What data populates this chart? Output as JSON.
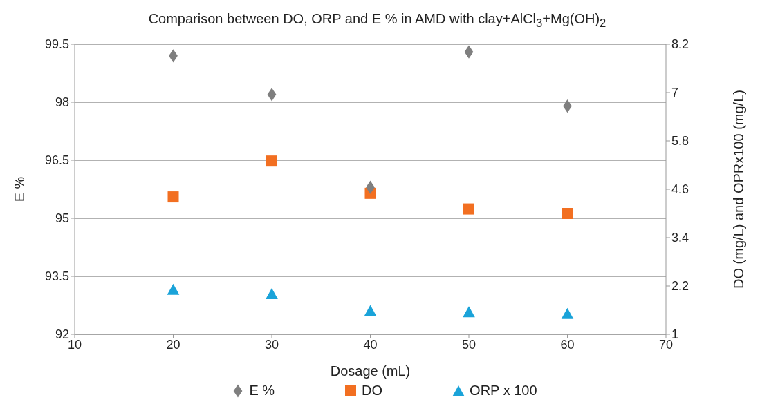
{
  "chart_data": {
    "type": "scatter",
    "title": "Comparison between  DO, ORP and E % in AMD with clay+AlCl$_{3}$+Mg(OH)$_{2}$",
    "xlabel": "Dosage (mL)",
    "ylabel": "E %",
    "y2label": "DO (mg/L) and OPRx100  (mg/L)",
    "x": [
      20,
      30,
      40,
      50,
      60
    ],
    "series": [
      {
        "name": "E %",
        "color": "#7f7f7f",
        "marker": "diamond",
        "values": [
          99.2,
          98.2,
          95.8,
          99.3,
          97.9
        ]
      },
      {
        "name": "DO",
        "color": "#f26f21",
        "marker": "square",
        "axis": "y2",
        "values": [
          4.41,
          5.3,
          4.5,
          4.11,
          4.0
        ]
      },
      {
        "name": "ORP x 100",
        "color": "#1aa3d9",
        "marker": "triangle",
        "axis": "y2",
        "values": [
          2.12,
          2.01,
          1.59,
          1.56,
          1.52
        ]
      }
    ],
    "xlim": [
      10,
      70
    ],
    "xticks": [
      10,
      20,
      30,
      40,
      50,
      60,
      70
    ],
    "ylim": [
      92,
      99.5
    ],
    "yticks": [
      92,
      93.5,
      95,
      96.5,
      98,
      99.5
    ],
    "y2lim": [
      1,
      8.2
    ],
    "y2ticks": [
      1,
      2.2,
      3.4,
      4.6,
      5.8,
      7,
      8.2
    ],
    "grid": "y",
    "legend": "bottom"
  }
}
